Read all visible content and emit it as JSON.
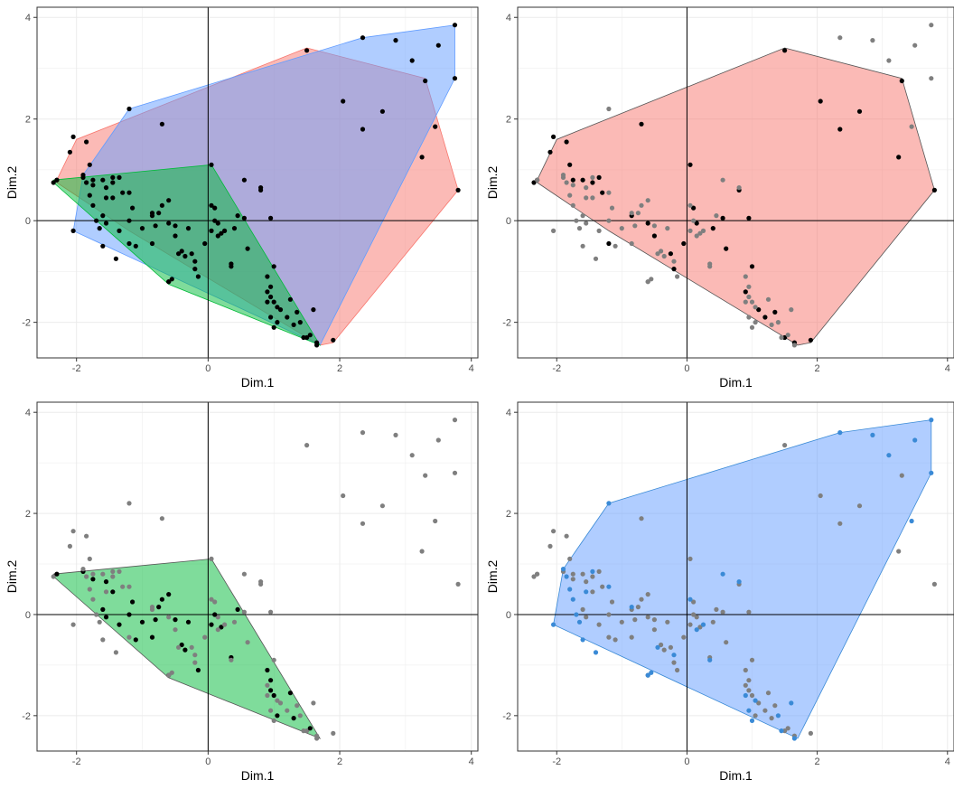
{
  "colors": {
    "cluster_red": "#f8766d",
    "cluster_green": "#00ba38",
    "cluster_blue": "#619cff",
    "blue_points": "#3a8ad6",
    "points_black": "#000000",
    "points_grey": "#7f7f7f",
    "grid": "#ebebeb",
    "panel_border": "#333333"
  },
  "chart_data": [
    {
      "type": "scatter",
      "panel": "all clusters overlay",
      "xlabel": "Dim.1",
      "ylabel": "Dim.2",
      "xlim": [
        -2.6,
        4.1
      ],
      "ylim": [
        -2.7,
        4.2
      ],
      "x_ticks": [
        -2,
        0,
        2,
        4
      ],
      "y_ticks": [
        -2,
        0,
        2,
        4
      ],
      "grid": true,
      "reference_lines": {
        "x": 0,
        "y": 0
      },
      "highlighted_cluster": "all",
      "hulls": [
        {
          "cluster": "red",
          "color": "#f8766d",
          "points": [
            [
              -2.3,
              0.8
            ],
            [
              -2.0,
              1.6
            ],
            [
              1.5,
              3.4
            ],
            [
              3.3,
              2.8
            ],
            [
              3.8,
              0.6
            ],
            [
              1.9,
              -2.4
            ],
            [
              1.7,
              -2.45
            ],
            [
              -1.2,
              -0.2
            ],
            [
              -2.3,
              0.75
            ]
          ]
        },
        {
          "cluster": "blue",
          "color": "#619cff",
          "points": [
            [
              -2.05,
              -0.2
            ],
            [
              -1.9,
              0.9
            ],
            [
              -1.2,
              2.2
            ],
            [
              2.35,
              3.6
            ],
            [
              3.75,
              3.85
            ],
            [
              3.75,
              2.8
            ],
            [
              1.7,
              -2.45
            ],
            [
              -2.05,
              -0.2
            ]
          ]
        },
        {
          "cluster": "green",
          "color": "#00ba38",
          "points": [
            [
              -2.35,
              0.8
            ],
            [
              0.05,
              1.1
            ],
            [
              1.7,
              -2.45
            ],
            [
              -0.6,
              -1.25
            ],
            [
              -2.35,
              0.75
            ]
          ]
        }
      ],
      "points": [
        {
          "x": -2.35,
          "y": 0.75,
          "c": "r"
        },
        {
          "x": -2.3,
          "y": 0.8,
          "c": "r"
        },
        {
          "x": -2.05,
          "y": 1.65,
          "c": "r"
        },
        {
          "x": -2.1,
          "y": 1.35,
          "c": "r"
        },
        {
          "x": -1.85,
          "y": 1.55,
          "c": "r"
        },
        {
          "x": -1.8,
          "y": 1.1,
          "c": "r"
        },
        {
          "x": -1.75,
          "y": 0.8,
          "c": "r"
        },
        {
          "x": -1.6,
          "y": 0.8,
          "c": "r"
        },
        {
          "x": -1.45,
          "y": 0.75,
          "c": "r"
        },
        {
          "x": -1.35,
          "y": 0.85,
          "c": "r"
        },
        {
          "x": -1.3,
          "y": 0.55,
          "c": "r"
        },
        {
          "x": -1.2,
          "y": -0.45,
          "c": "r"
        },
        {
          "x": -0.7,
          "y": 1.9,
          "c": "r"
        },
        {
          "x": -0.85,
          "y": 0.1,
          "c": "r"
        },
        {
          "x": -0.6,
          "y": -0.05,
          "c": "r"
        },
        {
          "x": -0.5,
          "y": -0.3,
          "c": "r"
        },
        {
          "x": -0.25,
          "y": -0.65,
          "c": "r"
        },
        {
          "x": -0.2,
          "y": -0.95,
          "c": "r"
        },
        {
          "x": -0.05,
          "y": -0.45,
          "c": "r"
        },
        {
          "x": 0.05,
          "y": 1.1,
          "c": "r"
        },
        {
          "x": 0.1,
          "y": 0.25,
          "c": "r"
        },
        {
          "x": 0.15,
          "y": -0.05,
          "c": "r"
        },
        {
          "x": 0.4,
          "y": -0.15,
          "c": "r"
        },
        {
          "x": 0.55,
          "y": 0.05,
          "c": "r"
        },
        {
          "x": 0.6,
          "y": -0.55,
          "c": "r"
        },
        {
          "x": 0.8,
          "y": 0.6,
          "c": "r"
        },
        {
          "x": 0.95,
          "y": 0.05,
          "c": "r"
        },
        {
          "x": 1.0,
          "y": -0.9,
          "c": "r"
        },
        {
          "x": 0.9,
          "y": -1.4,
          "c": "r"
        },
        {
          "x": 1.1,
          "y": -1.75,
          "c": "r"
        },
        {
          "x": 1.2,
          "y": -1.9,
          "c": "r"
        },
        {
          "x": 1.35,
          "y": -1.8,
          "c": "r"
        },
        {
          "x": 1.5,
          "y": -2.3,
          "c": "r"
        },
        {
          "x": 1.5,
          "y": 3.35,
          "c": "r"
        },
        {
          "x": 1.65,
          "y": -2.4,
          "c": "r"
        },
        {
          "x": 1.9,
          "y": -2.35,
          "c": "r"
        },
        {
          "x": 2.05,
          "y": 2.35,
          "c": "r"
        },
        {
          "x": 2.35,
          "y": 1.8,
          "c": "r"
        },
        {
          "x": 2.65,
          "y": 2.15,
          "c": "r"
        },
        {
          "x": 3.25,
          "y": 1.25,
          "c": "r"
        },
        {
          "x": 3.3,
          "y": 2.75,
          "c": "r"
        },
        {
          "x": 3.8,
          "y": 0.6,
          "c": "r"
        },
        {
          "x": -2.3,
          "y": 0.8,
          "c": "g"
        },
        {
          "x": -1.9,
          "y": 0.85,
          "c": "g"
        },
        {
          "x": -1.75,
          "y": 0.7,
          "c": "g"
        },
        {
          "x": -1.55,
          "y": 0.65,
          "c": "g"
        },
        {
          "x": -1.45,
          "y": 0.45,
          "c": "g"
        },
        {
          "x": -1.6,
          "y": 0.1,
          "c": "g"
        },
        {
          "x": -1.15,
          "y": 0.25,
          "c": "g"
        },
        {
          "x": -1.55,
          "y": -0.05,
          "c": "g"
        },
        {
          "x": -1.35,
          "y": -0.2,
          "c": "g"
        },
        {
          "x": -1.1,
          "y": -0.5,
          "c": "g"
        },
        {
          "x": -0.85,
          "y": -0.45,
          "c": "g"
        },
        {
          "x": -0.8,
          "y": -0.1,
          "c": "g"
        },
        {
          "x": -0.75,
          "y": 0.15,
          "c": "g"
        },
        {
          "x": -0.7,
          "y": 0.3,
          "c": "g"
        },
        {
          "x": -0.6,
          "y": 0.4,
          "c": "g"
        },
        {
          "x": -0.5,
          "y": -0.1,
          "c": "g"
        },
        {
          "x": -0.4,
          "y": -0.6,
          "c": "g"
        },
        {
          "x": -0.35,
          "y": -0.7,
          "c": "g"
        },
        {
          "x": -0.3,
          "y": -0.15,
          "c": "g"
        },
        {
          "x": -0.15,
          "y": -1.1,
          "c": "g"
        },
        {
          "x": 0.05,
          "y": -0.2,
          "c": "g"
        },
        {
          "x": 0.1,
          "y": 0.0,
          "c": "g"
        },
        {
          "x": 0.2,
          "y": -0.25,
          "c": "g"
        },
        {
          "x": 0.35,
          "y": -0.85,
          "c": "g"
        },
        {
          "x": 0.45,
          "y": 0.1,
          "c": "g"
        },
        {
          "x": 0.9,
          "y": -1.1,
          "c": "g"
        },
        {
          "x": 0.95,
          "y": -1.3,
          "c": "g"
        },
        {
          "x": 0.95,
          "y": -1.5,
          "c": "g"
        },
        {
          "x": 1.0,
          "y": -1.6,
          "c": "g"
        },
        {
          "x": 1.05,
          "y": -2.0,
          "c": "g"
        },
        {
          "x": 1.25,
          "y": -1.55,
          "c": "g"
        },
        {
          "x": 1.3,
          "y": -2.05,
          "c": "g"
        },
        {
          "x": 1.55,
          "y": -2.25,
          "c": "g"
        },
        {
          "x": -0.6,
          "y": -1.2,
          "c": "g"
        },
        {
          "x": -1.0,
          "y": -0.15,
          "c": "g"
        },
        {
          "x": -1.2,
          "y": 0.0,
          "c": "g"
        },
        {
          "x": -2.05,
          "y": -0.2,
          "c": "b"
        },
        {
          "x": -1.9,
          "y": 0.9,
          "c": "b"
        },
        {
          "x": -1.85,
          "y": 0.75,
          "c": "b"
        },
        {
          "x": -1.8,
          "y": 0.5,
          "c": "b"
        },
        {
          "x": -1.75,
          "y": 0.3,
          "c": "b"
        },
        {
          "x": -1.7,
          "y": 0.0,
          "c": "b"
        },
        {
          "x": -1.65,
          "y": -0.15,
          "c": "b"
        },
        {
          "x": -1.6,
          "y": -0.5,
          "c": "b"
        },
        {
          "x": -1.55,
          "y": 0.45,
          "c": "b"
        },
        {
          "x": -1.45,
          "y": 0.85,
          "c": "b"
        },
        {
          "x": -1.4,
          "y": -0.75,
          "c": "b"
        },
        {
          "x": -1.2,
          "y": 2.2,
          "c": "b"
        },
        {
          "x": -1.2,
          "y": 0.55,
          "c": "b"
        },
        {
          "x": -0.85,
          "y": 0.15,
          "c": "b"
        },
        {
          "x": -0.6,
          "y": -1.2,
          "c": "b"
        },
        {
          "x": -0.55,
          "y": -1.15,
          "c": "b"
        },
        {
          "x": -0.45,
          "y": -0.65,
          "c": "b"
        },
        {
          "x": -0.2,
          "y": -0.8,
          "c": "b"
        },
        {
          "x": 0.05,
          "y": 0.3,
          "c": "b"
        },
        {
          "x": 0.15,
          "y": -0.3,
          "c": "b"
        },
        {
          "x": 0.25,
          "y": -0.2,
          "c": "b"
        },
        {
          "x": 0.35,
          "y": -0.9,
          "c": "b"
        },
        {
          "x": 0.55,
          "y": 0.8,
          "c": "b"
        },
        {
          "x": 0.8,
          "y": 0.65,
          "c": "b"
        },
        {
          "x": 0.9,
          "y": -1.6,
          "c": "b"
        },
        {
          "x": 0.95,
          "y": -1.9,
          "c": "b"
        },
        {
          "x": 1.0,
          "y": -2.1,
          "c": "b"
        },
        {
          "x": 1.05,
          "y": -1.7,
          "c": "b"
        },
        {
          "x": 1.4,
          "y": -2.0,
          "c": "b"
        },
        {
          "x": 1.45,
          "y": -2.3,
          "c": "b"
        },
        {
          "x": 1.6,
          "y": -1.75,
          "c": "b"
        },
        {
          "x": 1.65,
          "y": -2.45,
          "c": "b"
        },
        {
          "x": 2.35,
          "y": 3.6,
          "c": "b"
        },
        {
          "x": 2.85,
          "y": 3.55,
          "c": "b"
        },
        {
          "x": 3.1,
          "y": 3.15,
          "c": "b"
        },
        {
          "x": 3.5,
          "y": 3.45,
          "c": "b"
        },
        {
          "x": 3.45,
          "y": 1.85,
          "c": "b"
        },
        {
          "x": 3.75,
          "y": 3.85,
          "c": "b"
        },
        {
          "x": 3.75,
          "y": 2.8,
          "c": "b"
        }
      ]
    },
    {
      "type": "scatter",
      "panel": "red cluster highlighted",
      "xlabel": "Dim.1",
      "ylabel": "Dim.2",
      "xlim": [
        -2.6,
        4.1
      ],
      "ylim": [
        -2.7,
        4.2
      ],
      "x_ticks": [
        -2,
        0,
        2,
        4
      ],
      "y_ticks": [
        -2,
        0,
        2,
        4
      ],
      "grid": true,
      "reference_lines": {
        "x": 0,
        "y": 0
      },
      "highlighted_cluster": "red"
    },
    {
      "type": "scatter",
      "panel": "green cluster highlighted",
      "xlabel": "Dim.1",
      "ylabel": "Dim.2",
      "xlim": [
        -2.6,
        4.1
      ],
      "ylim": [
        -2.7,
        4.2
      ],
      "x_ticks": [
        -2,
        0,
        2,
        4
      ],
      "y_ticks": [
        -2,
        0,
        2,
        4
      ],
      "grid": true,
      "reference_lines": {
        "x": 0,
        "y": 0
      },
      "highlighted_cluster": "green"
    },
    {
      "type": "scatter",
      "panel": "blue cluster highlighted",
      "xlabel": "Dim.1",
      "ylabel": "Dim.2",
      "xlim": [
        -2.6,
        4.1
      ],
      "ylim": [
        -2.7,
        4.2
      ],
      "x_ticks": [
        -2,
        0,
        2,
        4
      ],
      "y_ticks": [
        -2,
        0,
        2,
        4
      ],
      "grid": true,
      "reference_lines": {
        "x": 0,
        "y": 0
      },
      "highlighted_cluster": "blue"
    }
  ]
}
